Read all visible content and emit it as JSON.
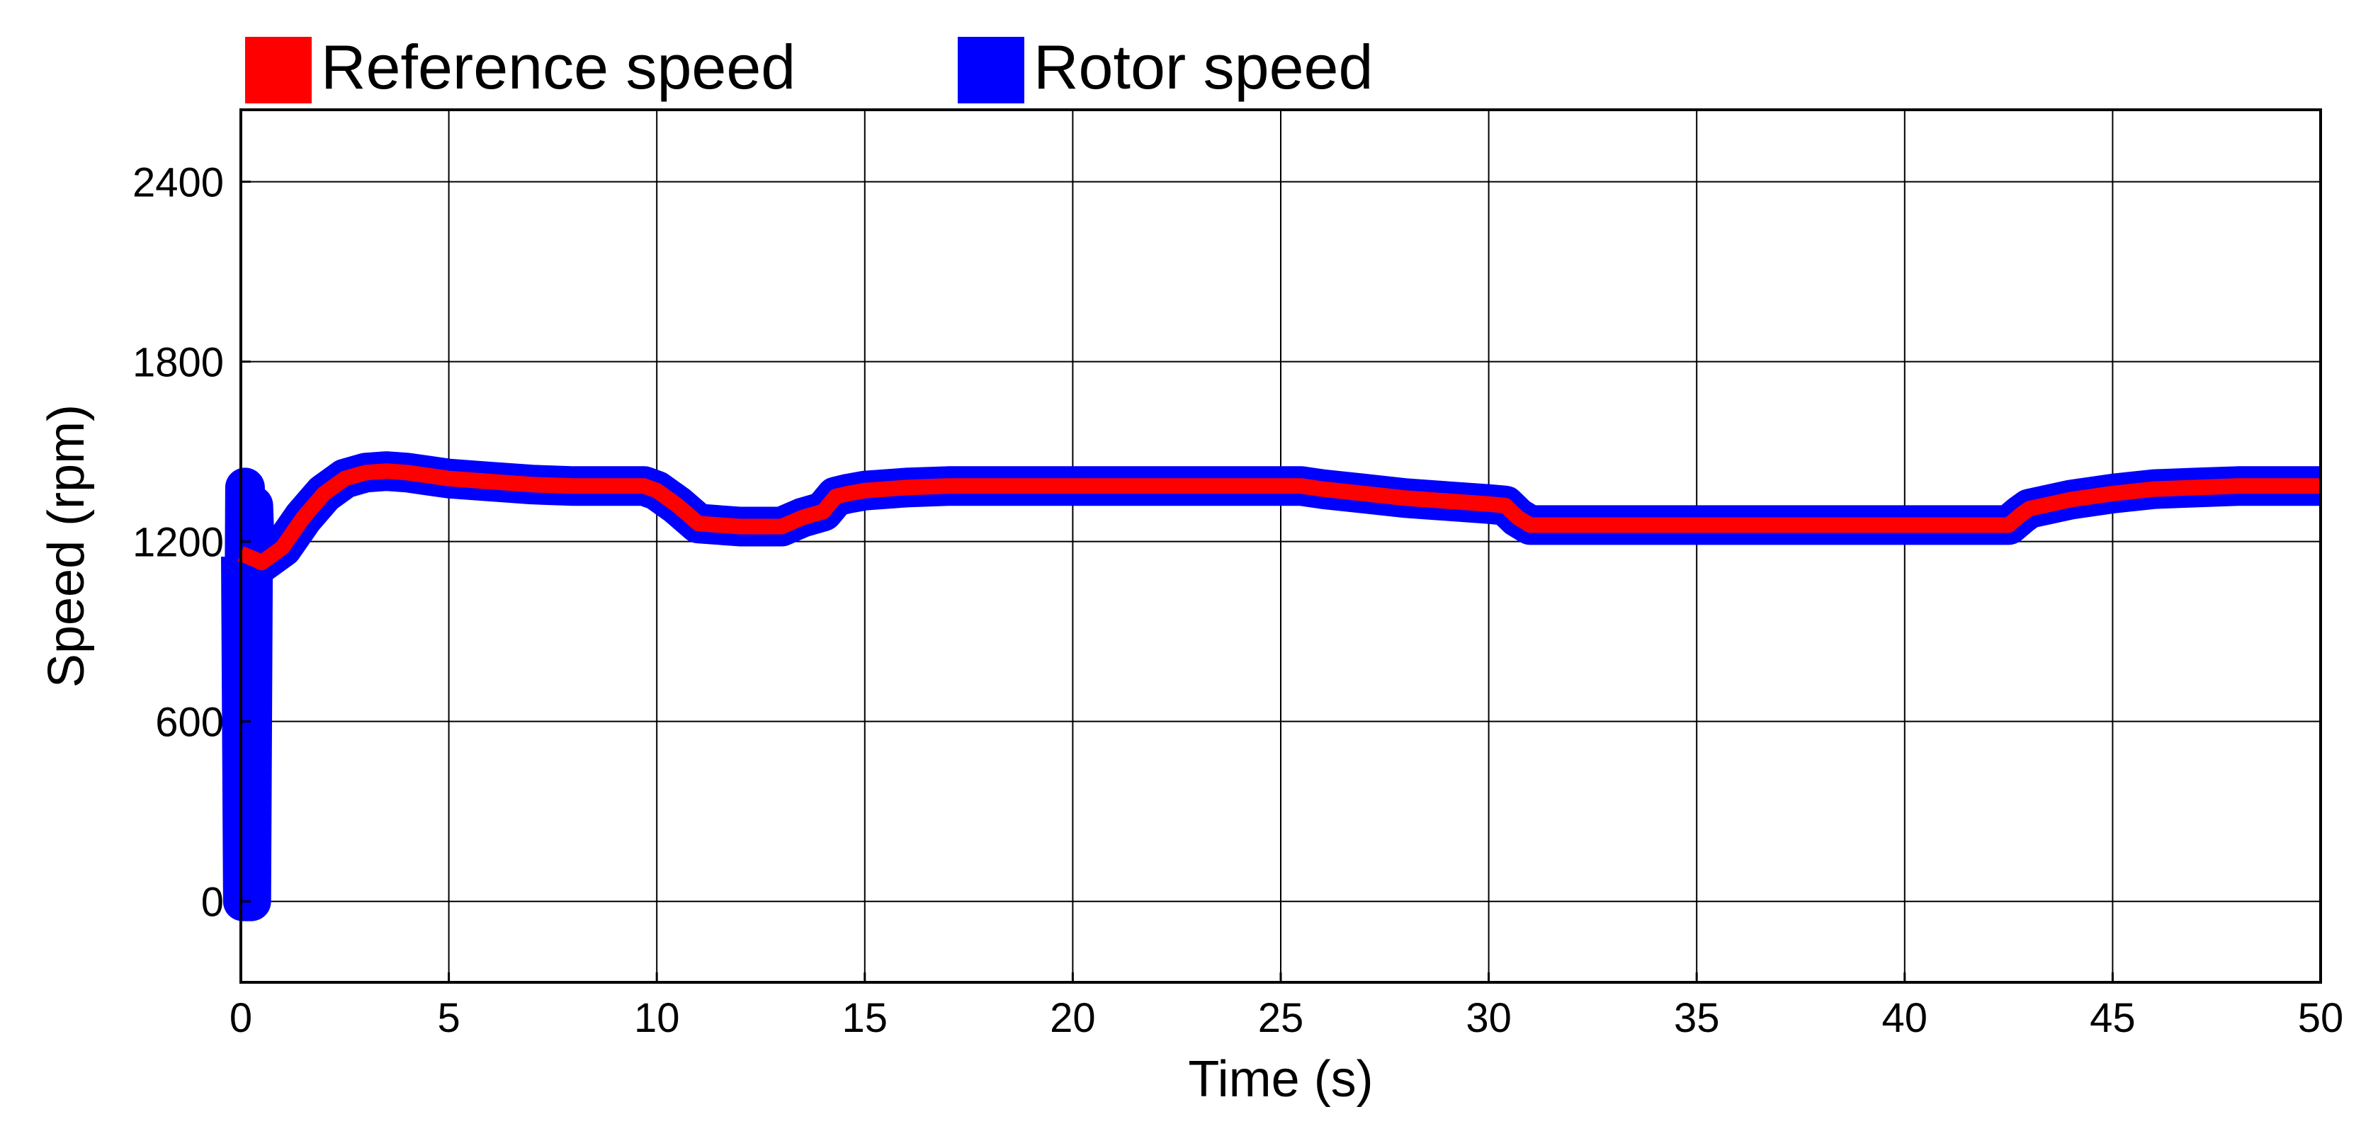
{
  "chart_data": {
    "type": "line",
    "title": "",
    "xlabel": "Time (s)",
    "ylabel": "Speed (rpm)",
    "xlim": [
      0,
      50
    ],
    "ylim": [
      -270,
      2640
    ],
    "grid": true,
    "legend_position": "top-left, above plot",
    "xticks": [
      0,
      5,
      10,
      15,
      20,
      25,
      30,
      35,
      40,
      45,
      50
    ],
    "yticks": [
      0,
      600,
      1200,
      1800,
      2400
    ],
    "x_tick_labels": [
      "0",
      "5",
      "10",
      "15",
      "20",
      "25",
      "30",
      "35",
      "40",
      "45",
      "50"
    ],
    "y_tick_labels": [
      "0",
      "600",
      "1200",
      "1800",
      "2400"
    ],
    "series": [
      {
        "name": "Rotor speed",
        "color": "#0000ff",
        "x": [
          0,
          0.05,
          0.1,
          0.15,
          0.2,
          0.25,
          0.3,
          0.35,
          0.5,
          1,
          1.5,
          2,
          2.5,
          3,
          3.5,
          4,
          4.5,
          5,
          6,
          7,
          8,
          9,
          9.7,
          10,
          10.5,
          11,
          12,
          13,
          13.5,
          14,
          14.3,
          14.6,
          15,
          16,
          17,
          18,
          19,
          20,
          21,
          22,
          23,
          24,
          25,
          25.5,
          26,
          27,
          28,
          29,
          30,
          30.4,
          30.7,
          31,
          31.5,
          32,
          33,
          34,
          35,
          36,
          37,
          38,
          39,
          40,
          41,
          42,
          42.5,
          42.8,
          43,
          44,
          45,
          46,
          47,
          48,
          49,
          50
        ],
        "y": [
          1150,
          0,
          1380,
          0,
          1320,
          0,
          1320,
          1130,
          1130,
          1180,
          1280,
          1360,
          1410,
          1430,
          1435,
          1430,
          1420,
          1410,
          1400,
          1390,
          1385,
          1385,
          1385,
          1370,
          1320,
          1260,
          1250,
          1250,
          1280,
          1300,
          1350,
          1360,
          1370,
          1380,
          1385,
          1385,
          1385,
          1385,
          1385,
          1385,
          1385,
          1385,
          1385,
          1385,
          1375,
          1360,
          1345,
          1335,
          1325,
          1320,
          1280,
          1255,
          1255,
          1255,
          1255,
          1255,
          1255,
          1255,
          1255,
          1255,
          1255,
          1255,
          1255,
          1255,
          1255,
          1290,
          1310,
          1340,
          1360,
          1375,
          1380,
          1385,
          1385,
          1385
        ]
      },
      {
        "name": "Reference speed",
        "color": "#ff0000",
        "x": [
          0,
          0.35,
          0.5,
          1,
          1.5,
          2,
          2.5,
          3,
          3.5,
          4,
          4.5,
          5,
          6,
          7,
          8,
          9,
          9.7,
          10,
          10.5,
          11,
          12,
          13,
          13.5,
          14,
          14.3,
          14.6,
          15,
          16,
          17,
          18,
          19,
          20,
          21,
          22,
          23,
          24,
          25,
          25.5,
          26,
          27,
          28,
          29,
          30,
          30.4,
          30.7,
          31,
          31.5,
          32,
          33,
          34,
          35,
          36,
          37,
          38,
          39,
          40,
          41,
          42,
          42.5,
          42.8,
          43,
          44,
          45,
          46,
          47,
          48,
          49,
          50
        ],
        "y": [
          1160,
          1140,
          1130,
          1180,
          1280,
          1360,
          1410,
          1430,
          1435,
          1430,
          1420,
          1410,
          1400,
          1390,
          1385,
          1385,
          1385,
          1370,
          1320,
          1260,
          1250,
          1250,
          1280,
          1300,
          1350,
          1360,
          1370,
          1380,
          1385,
          1385,
          1385,
          1385,
          1385,
          1385,
          1385,
          1385,
          1385,
          1385,
          1375,
          1360,
          1345,
          1335,
          1325,
          1320,
          1280,
          1255,
          1255,
          1255,
          1255,
          1255,
          1255,
          1255,
          1255,
          1255,
          1255,
          1255,
          1255,
          1255,
          1255,
          1290,
          1310,
          1340,
          1360,
          1375,
          1380,
          1385,
          1385,
          1385
        ]
      }
    ]
  },
  "legend": [
    {
      "label": "Reference speed",
      "color": "#ff0000"
    },
    {
      "label": "Rotor speed",
      "color": "#0000ff"
    }
  ]
}
